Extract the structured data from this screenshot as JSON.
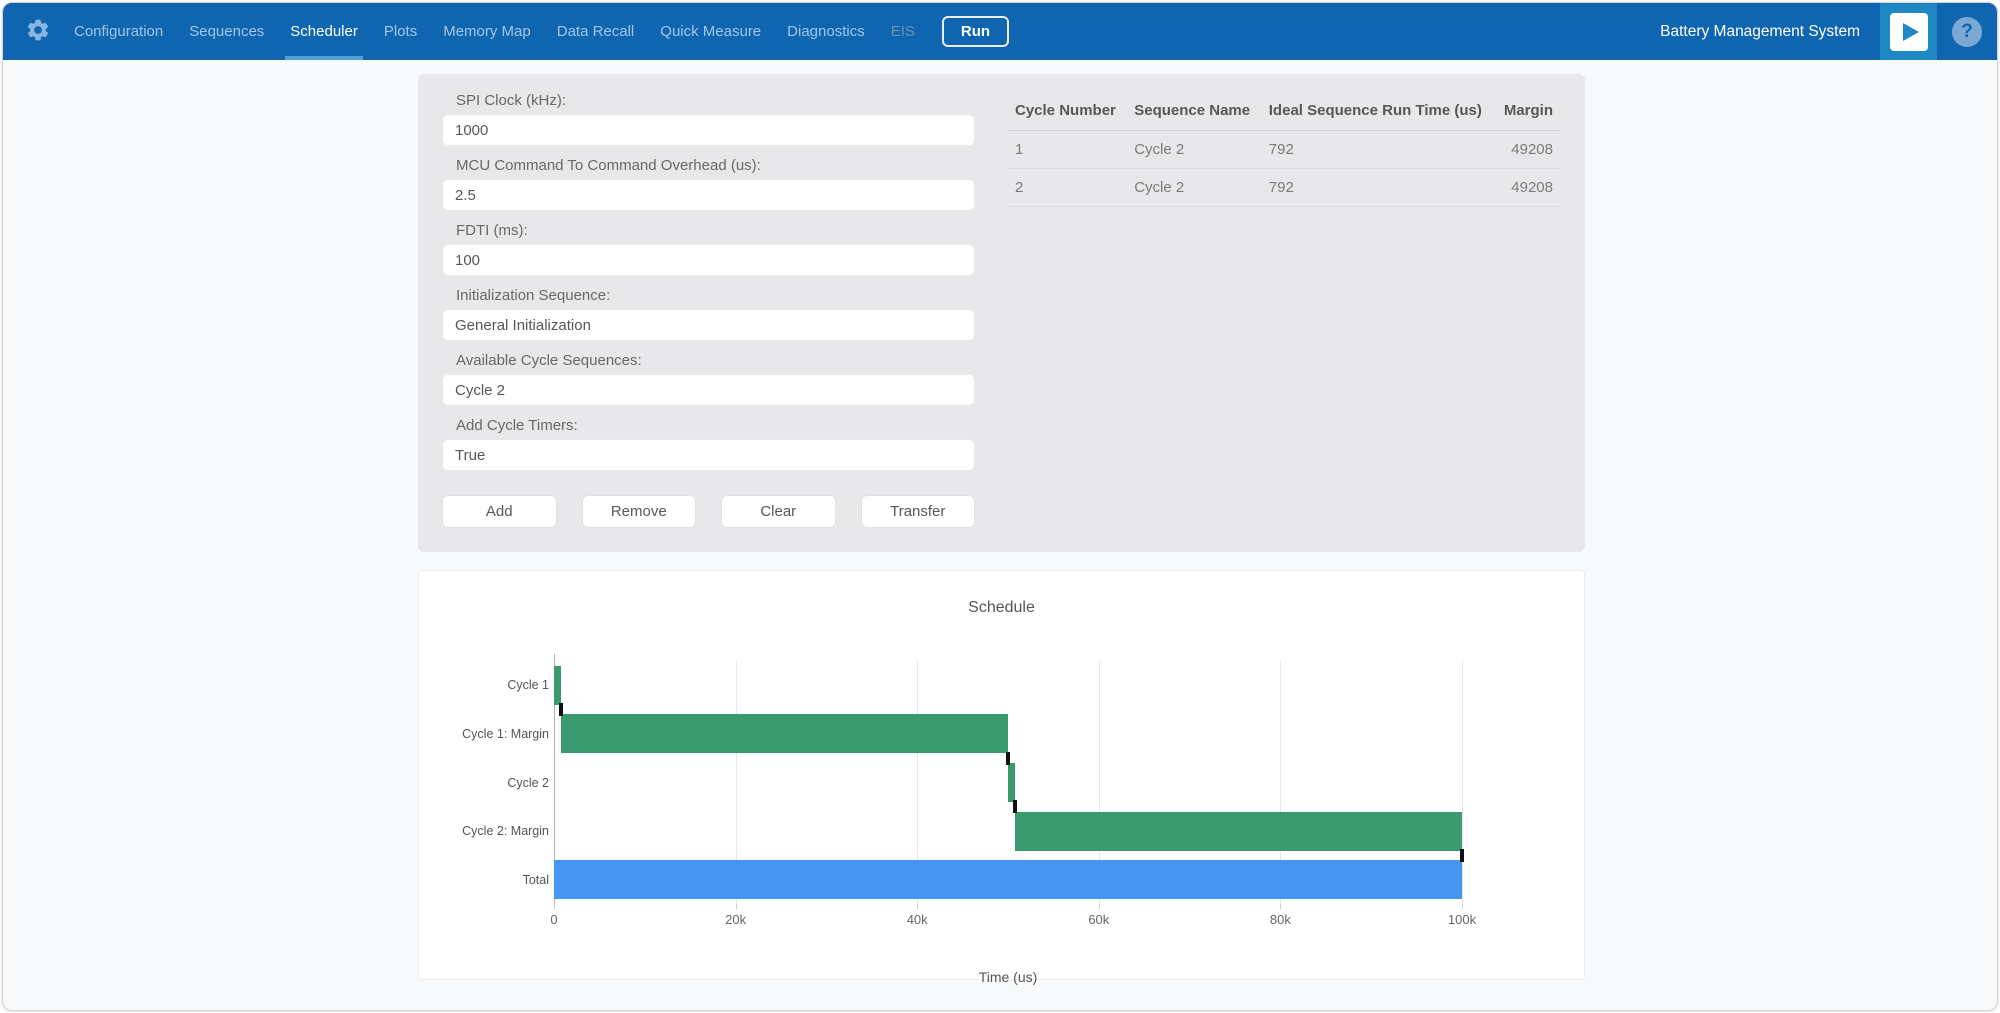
{
  "nav": {
    "items": [
      {
        "label": "Configuration",
        "active": false,
        "disabled": false
      },
      {
        "label": "Sequences",
        "active": false,
        "disabled": false
      },
      {
        "label": "Scheduler",
        "active": true,
        "disabled": false
      },
      {
        "label": "Plots",
        "active": false,
        "disabled": false
      },
      {
        "label": "Memory Map",
        "active": false,
        "disabled": false
      },
      {
        "label": "Data Recall",
        "active": false,
        "disabled": false
      },
      {
        "label": "Quick Measure",
        "active": false,
        "disabled": false
      },
      {
        "label": "Diagnostics",
        "active": false,
        "disabled": false
      },
      {
        "label": "EIS",
        "active": false,
        "disabled": true
      }
    ],
    "run_label": "Run",
    "app_title": "Battery Management System",
    "help_glyph": "?"
  },
  "form": {
    "fields": [
      {
        "name": "spi-clock",
        "label": "SPI Clock (kHz):",
        "value": "1000"
      },
      {
        "name": "mcu-overhead",
        "label": "MCU Command To Command Overhead (us):",
        "value": "2.5"
      },
      {
        "name": "fdti",
        "label": "FDTI (ms):",
        "value": "100"
      },
      {
        "name": "init-sequence",
        "label": "Initialization Sequence:",
        "value": "General Initialization"
      },
      {
        "name": "available-cycle-sequences",
        "label": "Available Cycle Sequences:",
        "value": "Cycle 2"
      },
      {
        "name": "add-cycle-timers",
        "label": "Add Cycle Timers:",
        "value": "True"
      }
    ],
    "buttons": [
      "Add",
      "Remove",
      "Clear",
      "Transfer"
    ]
  },
  "table": {
    "columns": [
      "Cycle Number",
      "Sequence Name",
      "Ideal Sequence Run Time (us)",
      "Margin"
    ],
    "rows": [
      [
        "1",
        "Cycle 2",
        "792",
        "49208"
      ],
      [
        "2",
        "Cycle 2",
        "792",
        "49208"
      ]
    ]
  },
  "chart_data": {
    "type": "bar",
    "title": "Schedule",
    "xlabel": "Time (us)",
    "xlim": [
      0,
      100000
    ],
    "x_ticks": [
      {
        "value": 0,
        "label": "0"
      },
      {
        "value": 20000,
        "label": "20k"
      },
      {
        "value": 40000,
        "label": "40k"
      },
      {
        "value": 60000,
        "label": "60k"
      },
      {
        "value": 80000,
        "label": "80k"
      },
      {
        "value": 100000,
        "label": "100k"
      }
    ],
    "categories": [
      "Cycle 1",
      "Cycle 1: Margin",
      "Cycle 2",
      "Cycle 2: Margin",
      "Total"
    ],
    "bars": [
      {
        "category": "Cycle 1",
        "start": 0,
        "end": 792,
        "color": "#3a9a70"
      },
      {
        "category": "Cycle 1: Margin",
        "start": 792,
        "end": 50000,
        "color": "#3a9a70"
      },
      {
        "category": "Cycle 2",
        "start": 50000,
        "end": 50792,
        "color": "#3a9a70"
      },
      {
        "category": "Cycle 2: Margin",
        "start": 50792,
        "end": 100000,
        "color": "#3a9a70"
      },
      {
        "category": "Total",
        "start": 0,
        "end": 100000,
        "color": "#4697f3"
      }
    ],
    "end_markers": [
      792,
      50000,
      50792,
      100000
    ],
    "grid": true,
    "legend": false
  },
  "colors": {
    "nav_bg": "#0f65b0",
    "nav_inactive": "#a3c6e6",
    "nav_active": "#ffffff",
    "nav_underline": "#4ba3d6",
    "panel_bg": "#e8e8ea",
    "bar_green": "#3a9a70",
    "bar_blue": "#4697f3",
    "marker_black": "#111111"
  }
}
